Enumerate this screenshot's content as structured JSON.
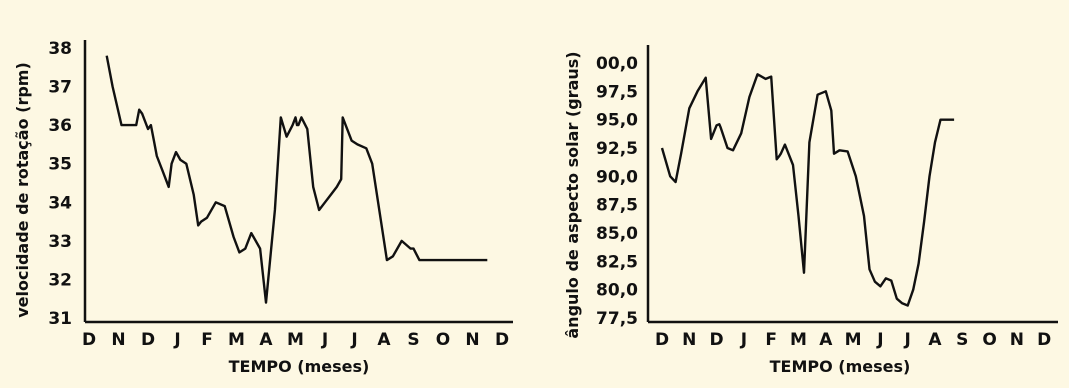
{
  "chart_data": [
    {
      "type": "line",
      "xlabel": "TEMPO  (meses)",
      "ylabel": "velocidade de rotação  (rpm)",
      "ylim": [
        31,
        38
      ],
      "yticks": [
        "38",
        "37",
        "36",
        "35",
        "34",
        "33",
        "32",
        "31"
      ],
      "yticks_values": [
        38,
        37,
        36,
        35,
        34,
        33,
        32,
        31
      ],
      "categories": [
        "D",
        "N",
        "D",
        "J",
        "F",
        "M",
        "A",
        "M",
        "J",
        "J",
        "A",
        "S",
        "O",
        "N",
        "D"
      ],
      "series": [
        {
          "x": [
            0.6,
            0.8,
            1.1,
            1.4,
            1.6,
            1.7,
            1.8,
            2.0,
            2.1,
            2.2,
            2.3,
            2.5,
            2.7,
            2.8,
            2.95,
            3.1,
            3.3,
            3.55,
            3.7,
            3.8,
            4.0,
            4.3,
            4.6,
            4.9,
            5.1,
            5.3,
            5.5,
            5.8,
            6.0,
            6.3,
            6.5,
            6.7,
            6.9,
            7.0,
            7.05,
            7.1,
            7.2,
            7.4,
            7.6,
            7.8,
            8.0,
            8.2,
            8.4,
            8.55,
            8.6,
            8.9,
            9.1,
            9.4,
            9.6,
            9.8,
            10.0,
            10.1,
            10.3,
            10.6,
            10.9,
            11.0,
            11.2,
            11.4,
            11.6,
            11.8,
            11.9,
            12.1,
            12.3,
            12.5,
            12.6,
            12.8,
            13.0,
            13.2,
            13.4,
            13.5
          ],
          "y": [
            37.8,
            37.0,
            36.0,
            36.0,
            36.0,
            36.4,
            36.3,
            35.9,
            36.0,
            35.6,
            35.2,
            34.8,
            34.4,
            35.0,
            35.3,
            35.1,
            35.0,
            34.2,
            33.4,
            33.5,
            33.6,
            34.0,
            33.9,
            33.1,
            32.7,
            32.8,
            33.2,
            32.8,
            31.4,
            33.8,
            36.2,
            35.7,
            36.0,
            36.2,
            36.0,
            36.0,
            36.2,
            35.9,
            34.4,
            33.8,
            34.0,
            34.2,
            34.4,
            34.6,
            36.2,
            35.6,
            35.5,
            35.4,
            35.0,
            34.0,
            33.0,
            32.5,
            32.6,
            33.0,
            32.8,
            32.8,
            32.5,
            32.5,
            32.5,
            32.5,
            32.5,
            32.5,
            32.5,
            32.5,
            32.5,
            32.5,
            32.5,
            32.5,
            32.5,
            32.5
          ]
        }
      ]
    },
    {
      "type": "line",
      "xlabel": "TEMPO  (meses)",
      "ylabel": "ângulo de aspecto solar  (graus)",
      "ylim": [
        77.5,
        100.0
      ],
      "yticks": [
        "00,0",
        "97,5",
        "95,0",
        "92,5",
        "90,0",
        "87,5",
        "85,0",
        "82,5",
        "80,0",
        "77,5"
      ],
      "yticks_values": [
        100.0,
        97.5,
        95.0,
        92.5,
        90.0,
        87.5,
        85.0,
        82.5,
        80.0,
        77.5
      ],
      "categories": [
        "D",
        "N",
        "D",
        "J",
        "F",
        "M",
        "A",
        "M",
        "J",
        "J",
        "A",
        "S",
        "O",
        "N",
        "D"
      ],
      "series": [
        {
          "x": [
            0.0,
            0.3,
            0.5,
            0.7,
            1.0,
            1.3,
            1.6,
            1.8,
            2.0,
            2.1,
            2.15,
            2.4,
            2.6,
            2.9,
            3.2,
            3.5,
            3.8,
            4.0,
            4.2,
            4.3,
            4.35,
            4.5,
            4.8,
            5.0,
            5.2,
            5.4,
            5.7,
            6.0,
            6.2,
            6.3,
            6.5,
            6.8,
            7.1,
            7.4,
            7.6,
            7.8,
            8.0,
            8.2,
            8.4,
            8.6,
            8.8,
            9.0,
            9.2,
            9.4,
            9.6,
            9.8,
            10.0,
            10.2,
            10.4,
            10.5,
            10.7
          ],
          "y": [
            92.5,
            90.0,
            89.5,
            92.0,
            96.0,
            97.5,
            98.7,
            93.3,
            94.5,
            94.6,
            94.3,
            92.5,
            92.3,
            93.8,
            97.0,
            99.0,
            98.6,
            98.8,
            91.5,
            91.8,
            92.0,
            92.8,
            91.0,
            86.5,
            81.5,
            93.0,
            97.2,
            97.5,
            95.8,
            92.0,
            92.3,
            92.2,
            90.0,
            86.5,
            81.8,
            80.7,
            80.3,
            81.0,
            80.8,
            79.2,
            78.8,
            78.6,
            80.0,
            82.3,
            86.0,
            90.0,
            93.0,
            95.0,
            95.0,
            95.0,
            95.0
          ]
        }
      ]
    }
  ]
}
